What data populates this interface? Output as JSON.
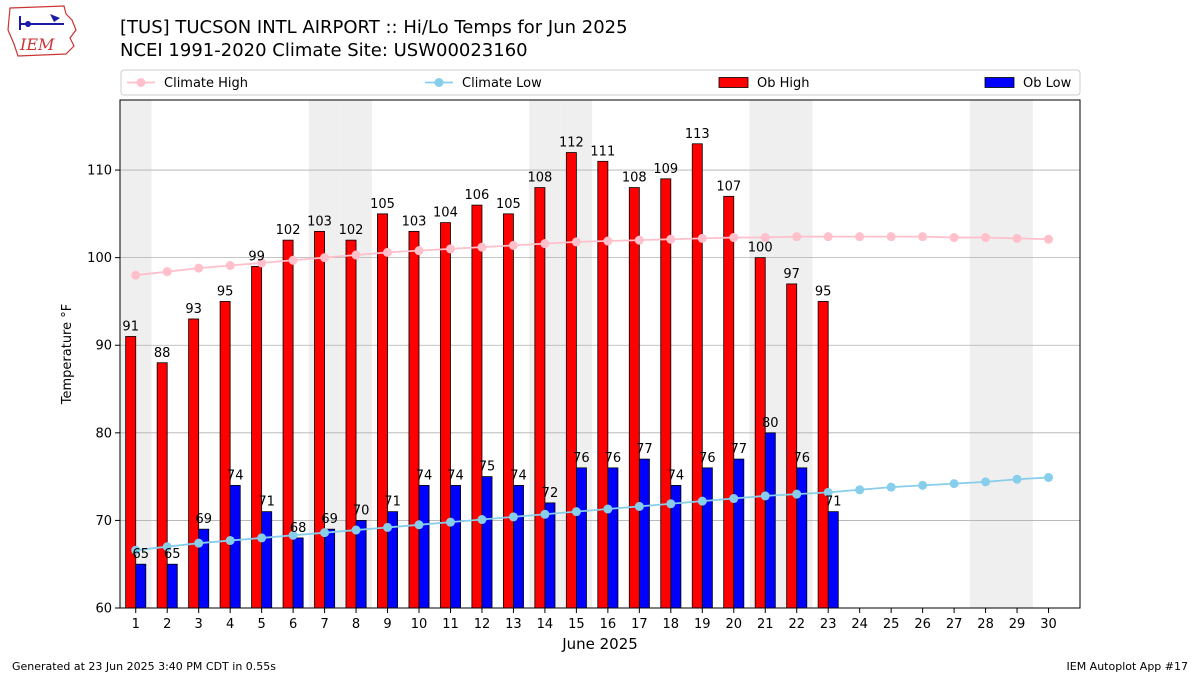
{
  "header": {
    "title_line1": "[TUS] TUCSON INTL AIRPORT :: Hi/Lo Temps for Jun 2025",
    "title_line2": "NCEI 1991-2020 Climate Site: USW00023160",
    "logo_text": "IEM"
  },
  "footer": {
    "left": "Generated at 23 Jun 2025 3:40 PM CDT in 0.55s",
    "right": "IEM Autoplot App #17"
  },
  "chart_data": {
    "type": "bar",
    "xlabel": "June 2025",
    "ylabel": "Temperature °F",
    "ylim": [
      60,
      118
    ],
    "yticks": [
      60,
      70,
      80,
      90,
      100,
      110
    ],
    "grid": "horizontal",
    "legend_position": "top",
    "days": [
      1,
      2,
      3,
      4,
      5,
      6,
      7,
      8,
      9,
      10,
      11,
      12,
      13,
      14,
      15,
      16,
      17,
      18,
      19,
      20,
      21,
      22,
      23,
      24,
      25,
      26,
      27,
      28,
      29,
      30
    ],
    "weekend_shading_days": [
      1,
      7,
      8,
      14,
      15,
      21,
      22,
      28,
      29
    ],
    "series": [
      {
        "name": "Climate High",
        "kind": "line",
        "color": "#ffc0cb",
        "values": [
          98.0,
          98.4,
          98.8,
          99.1,
          99.4,
          99.7,
          100.0,
          100.3,
          100.6,
          100.8,
          101.0,
          101.2,
          101.4,
          101.6,
          101.8,
          101.9,
          102.0,
          102.1,
          102.2,
          102.3,
          102.3,
          102.4,
          102.4,
          102.4,
          102.4,
          102.4,
          102.3,
          102.3,
          102.2,
          102.1
        ]
      },
      {
        "name": "Climate Low",
        "kind": "line",
        "color": "#87ceeb",
        "values": [
          66.6,
          67.0,
          67.4,
          67.7,
          68.0,
          68.3,
          68.6,
          68.9,
          69.2,
          69.5,
          69.8,
          70.1,
          70.4,
          70.7,
          71.0,
          71.3,
          71.6,
          71.9,
          72.2,
          72.5,
          72.8,
          73.0,
          73.2,
          73.5,
          73.8,
          74.0,
          74.2,
          74.4,
          74.7,
          74.9
        ]
      },
      {
        "name": "Ob High",
        "kind": "bar",
        "color": "#ff0000",
        "values": [
          91,
          88,
          93,
          95,
          99,
          102,
          103,
          102,
          105,
          103,
          104,
          106,
          105,
          108,
          112,
          111,
          108,
          109,
          113,
          107,
          100,
          97,
          95
        ]
      },
      {
        "name": "Ob Low",
        "kind": "bar",
        "color": "#0000ff",
        "values": [
          65,
          65,
          69,
          74,
          71,
          68,
          69,
          70,
          71,
          74,
          74,
          75,
          74,
          72,
          76,
          76,
          77,
          74,
          76,
          77,
          80,
          76,
          71
        ]
      }
    ]
  }
}
